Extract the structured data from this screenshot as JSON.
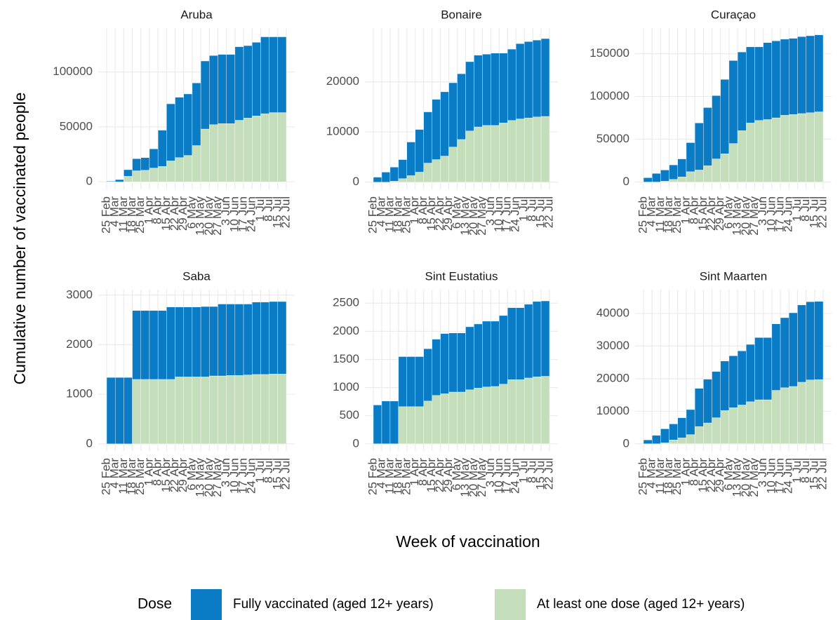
{
  "chart_data": {
    "type": "bar",
    "stacked": true,
    "y_label": "Cumulative number of vaccinated people",
    "x_label": "Week of vaccination",
    "legend_title": "Dose",
    "legend_position": "bottom",
    "grid": true,
    "series": [
      {
        "name": "Fully vaccinated (aged 12+ years)",
        "color": "#0a7cc6"
      },
      {
        "name": "At least one dose (aged 12+ years)",
        "color": "#c4ddbb"
      }
    ],
    "categories": [
      "25 Feb",
      "4 Mar",
      "11 Mar",
      "18 Mar",
      "25 Mar",
      "1 Apr",
      "8 Apr",
      "15 Apr",
      "22 Apr",
      "29 Apr",
      "6 May",
      "13 May",
      "20 May",
      "27 May",
      "3 Jun",
      "10 Jun",
      "17 Jun",
      "24 Jun",
      "1 Jul",
      "8 Jul",
      "15 Jul",
      "22 Jul"
    ],
    "panels": [
      {
        "title": "Aruba",
        "ylim": [
          -6900,
          140000
        ],
        "yticks": [
          0,
          50000,
          100000
        ],
        "series": [
          {
            "values": [
              500,
              2000,
              6000,
              11000,
              11500,
              17500,
              33000,
              52000,
              55000,
              56000,
              57000,
              62000,
              63000,
              63000,
              63000,
              67000,
              66000,
              67000,
              70000,
              69000,
              69000,
              null
            ]
          },
          {
            "values": [
              0,
              0,
              5000,
              10000,
              10500,
              12500,
              14000,
              19000,
              22000,
              24000,
              33000,
              48000,
              52000,
              53000,
              53000,
              56000,
              58000,
              60000,
              62000,
              63000,
              63000,
              null
            ]
          }
        ]
      },
      {
        "title": "Bonaire",
        "ylim": [
          -1430,
          30700
        ],
        "yticks": [
          0,
          10000,
          20000
        ],
        "series": [
          {
            "values": [
              1000,
              2000,
              2800,
              3800,
              6700,
              8500,
              10200,
              12000,
              12800,
              12800,
              13100,
              13800,
              14300,
              14200,
              14400,
              13900,
              14200,
              15000,
              15200,
              15300,
              15500,
              null
            ]
          },
          {
            "values": [
              0,
              0,
              200,
              700,
              1300,
              2000,
              3800,
              4500,
              5200,
              7000,
              8500,
              10200,
              11000,
              11300,
              11300,
              11800,
              12300,
              12600,
              12800,
              13000,
              13100,
              null
            ]
          }
        ]
      },
      {
        "title": "Curaçao",
        "ylim": [
          -8600,
          180000
        ],
        "yticks": [
          0,
          50000,
          100000,
          150000
        ],
        "series": [
          {
            "values": [
              5000,
              10000,
              13000,
              17000,
              21000,
              34000,
              55000,
              68000,
              74000,
              87000,
              97000,
              92000,
              89000,
              86000,
              90000,
              90000,
              89000,
              89000,
              90000,
              90000,
              90000,
              null
            ]
          },
          {
            "values": [
              0,
              0,
              1000,
              3000,
              6000,
              12000,
              14000,
              19000,
              27000,
              33000,
              45000,
              60000,
              69000,
              72000,
              73000,
              75000,
              78000,
              79000,
              80000,
              81000,
              82000,
              null
            ]
          }
        ]
      },
      {
        "title": "Saba",
        "ylim": [
          -143,
          3110
        ],
        "yticks": [
          0,
          1000,
          2000,
          3000
        ],
        "series": [
          {
            "values": [
              1340,
              1340,
              1340,
              1390,
              1390,
              1390,
              1390,
              1460,
              1410,
              1410,
              1410,
              1420,
              1400,
              1450,
              1440,
              1440,
              1430,
              1460,
              1460,
              1460,
              1460,
              null
            ]
          },
          {
            "values": [
              0,
              0,
              0,
              1300,
              1300,
              1300,
              1300,
              1300,
              1350,
              1350,
              1350,
              1350,
              1370,
              1370,
              1380,
              1380,
              1390,
              1400,
              1400,
              1410,
              1410,
              null
            ]
          }
        ]
      },
      {
        "title": "Sint Eustatius",
        "ylim": [
          -127,
          2740
        ],
        "yticks": [
          0,
          500,
          1000,
          1500,
          2000,
          2500
        ],
        "series": [
          {
            "values": [
              690,
              760,
              760,
              890,
              890,
              890,
              930,
              1000,
              1070,
              1050,
              1050,
              1120,
              1140,
              1170,
              1160,
              1220,
              1280,
              1280,
              1310,
              1340,
              1340,
              null
            ]
          },
          {
            "values": [
              0,
              0,
              0,
              660,
              660,
              660,
              760,
              860,
              890,
              920,
              920,
              960,
              990,
              1010,
              1020,
              1060,
              1140,
              1140,
              1170,
              1190,
              1200,
              null
            ]
          }
        ]
      },
      {
        "title": "Sint Maarten",
        "ylim": [
          -2200,
          47300
        ],
        "yticks": [
          0,
          10000,
          20000,
          30000,
          40000
        ],
        "series": [
          {
            "values": [
              1200,
              2600,
              4300,
              4900,
              6200,
              7700,
              11700,
              13400,
              14200,
              15200,
              15900,
              16600,
              17600,
              19100,
              19100,
              20400,
              21500,
              22600,
              23700,
              24000,
              24000,
              null
            ]
          },
          {
            "values": [
              0,
              0,
              300,
              1200,
              1800,
              2800,
              5300,
              6400,
              8000,
              10200,
              11100,
              11900,
              12900,
              13500,
              13500,
              16400,
              17200,
              17600,
              18900,
              19600,
              19700,
              null
            ]
          }
        ]
      }
    ]
  }
}
